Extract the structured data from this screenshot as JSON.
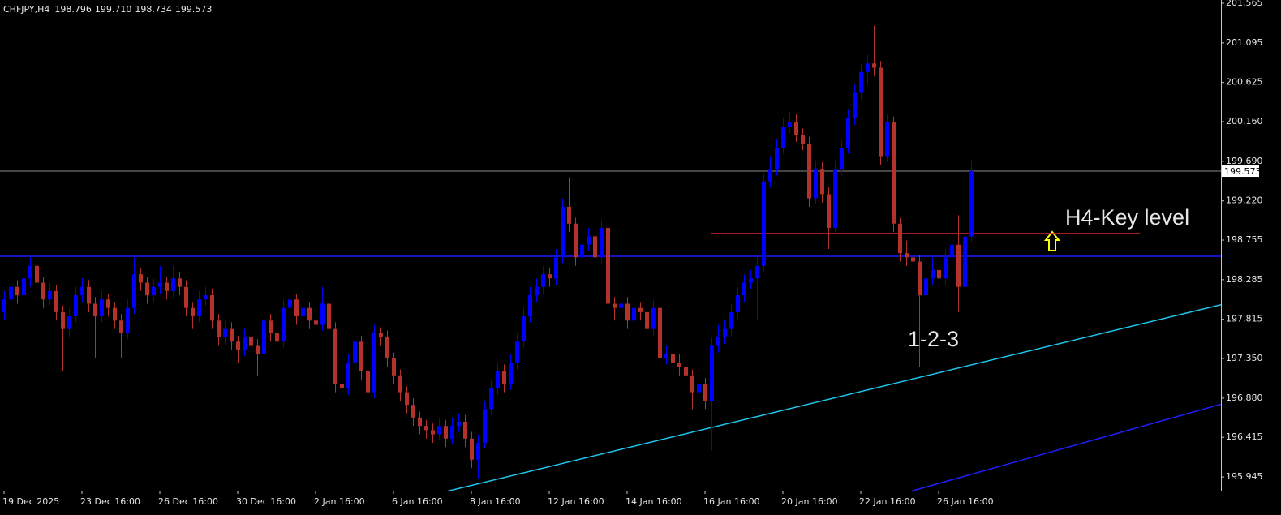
{
  "chart_data": {
    "type": "candlestick",
    "title": "CHFJPY,H4",
    "last_ohlc_labels": [
      "198.796",
      "199.710",
      "198.734",
      "199.573"
    ],
    "categories": [
      "19 Dec 2025",
      null,
      null,
      null,
      null,
      null,
      null,
      null,
      null,
      null,
      null,
      null,
      "23 Dec 16:00",
      null,
      null,
      null,
      null,
      null,
      null,
      null,
      null,
      null,
      null,
      null,
      "26 Dec 16:00",
      null,
      null,
      null,
      null,
      null,
      null,
      null,
      null,
      null,
      null,
      null,
      "30 Dec 16:00",
      null,
      null,
      null,
      null,
      null,
      null,
      null,
      null,
      null,
      null,
      null,
      "2 Jan 16:00",
      null,
      null,
      null,
      null,
      null,
      null,
      null,
      null,
      null,
      null,
      null,
      "6 Jan 16:00",
      null,
      null,
      null,
      null,
      null,
      null,
      null,
      null,
      null,
      null,
      null,
      "8 Jan 16:00",
      null,
      null,
      null,
      null,
      null,
      null,
      null,
      null,
      null,
      null,
      null,
      "12 Jan 16:00",
      null,
      null,
      null,
      null,
      null,
      null,
      null,
      null,
      null,
      null,
      null,
      "14 Jan 16:00",
      null,
      null,
      null,
      null,
      null,
      null,
      null,
      null,
      null,
      null,
      null,
      "16 Jan 16:00",
      null,
      null,
      null,
      null,
      null,
      null,
      null,
      null,
      null,
      null,
      null,
      "20 Jan 16:00",
      null,
      null,
      null,
      null,
      null,
      null,
      null,
      null,
      null,
      null,
      null,
      "22 Jan 16:00",
      null,
      null,
      null,
      null,
      null,
      null,
      null,
      null,
      null,
      null,
      null,
      "26 Jan 16:00",
      null,
      null,
      null,
      null,
      null
    ],
    "candles": [
      [
        197.9,
        198.15,
        197.8,
        198.05
      ],
      [
        198.05,
        198.3,
        197.95,
        198.2
      ],
      [
        198.2,
        198.28,
        198.0,
        198.1
      ],
      [
        198.1,
        198.4,
        198.02,
        198.3
      ],
      [
        198.3,
        198.55,
        198.2,
        198.45
      ],
      [
        198.45,
        198.52,
        198.15,
        198.25
      ],
      [
        198.25,
        198.32,
        197.95,
        198.05
      ],
      [
        198.05,
        198.25,
        197.98,
        198.15
      ],
      [
        198.15,
        198.22,
        197.8,
        197.9
      ],
      [
        197.9,
        197.98,
        197.2,
        197.7
      ],
      [
        197.7,
        197.95,
        197.6,
        197.85
      ],
      [
        197.85,
        198.2,
        197.78,
        198.1
      ],
      [
        198.1,
        198.3,
        198.02,
        198.2
      ],
      [
        198.2,
        198.28,
        197.9,
        198.0
      ],
      [
        198.0,
        198.08,
        197.35,
        197.85
      ],
      [
        197.85,
        198.15,
        197.78,
        198.05
      ],
      [
        198.05,
        198.12,
        197.85,
        197.95
      ],
      [
        197.95,
        198.02,
        197.7,
        197.8
      ],
      [
        197.8,
        197.88,
        197.35,
        197.65
      ],
      [
        197.65,
        198.05,
        197.58,
        197.95
      ],
      [
        197.95,
        198.55,
        197.88,
        198.35
      ],
      [
        198.35,
        198.42,
        198.15,
        198.25
      ],
      [
        198.25,
        198.32,
        198.0,
        198.1
      ],
      [
        198.1,
        198.3,
        198.02,
        198.2
      ],
      [
        198.2,
        198.45,
        198.12,
        198.25
      ],
      [
        198.25,
        198.32,
        198.05,
        198.15
      ],
      [
        198.15,
        198.45,
        198.08,
        198.3
      ],
      [
        198.3,
        198.38,
        198.1,
        198.2
      ],
      [
        198.2,
        198.28,
        197.85,
        197.95
      ],
      [
        197.95,
        198.02,
        197.7,
        197.85
      ],
      [
        197.85,
        198.15,
        197.78,
        198.05
      ],
      [
        198.05,
        198.2,
        197.98,
        198.1
      ],
      [
        198.1,
        198.18,
        197.7,
        197.8
      ],
      [
        197.8,
        197.88,
        197.5,
        197.6
      ],
      [
        197.6,
        197.8,
        197.52,
        197.7
      ],
      [
        197.7,
        197.78,
        197.45,
        197.55
      ],
      [
        197.55,
        197.62,
        197.3,
        197.45
      ],
      [
        197.45,
        197.7,
        197.38,
        197.6
      ],
      [
        197.6,
        197.68,
        197.4,
        197.5
      ],
      [
        197.5,
        197.58,
        197.15,
        197.4
      ],
      [
        197.4,
        197.9,
        197.33,
        197.8
      ],
      [
        197.8,
        197.88,
        197.55,
        197.65
      ],
      [
        197.65,
        197.72,
        197.35,
        197.55
      ],
      [
        197.55,
        198.05,
        197.48,
        197.95
      ],
      [
        197.95,
        198.15,
        197.88,
        198.05
      ],
      [
        198.05,
        198.12,
        197.75,
        197.85
      ],
      [
        197.85,
        198.05,
        197.78,
        197.95
      ],
      [
        197.95,
        198.02,
        197.7,
        197.8
      ],
      [
        197.8,
        197.88,
        197.65,
        197.75
      ],
      [
        197.75,
        198.2,
        197.68,
        198.0
      ],
      [
        198.0,
        198.08,
        197.6,
        197.7
      ],
      [
        197.7,
        197.78,
        196.95,
        197.05
      ],
      [
        197.05,
        197.15,
        196.85,
        197.0
      ],
      [
        197.0,
        197.4,
        196.92,
        197.3
      ],
      [
        197.3,
        197.65,
        197.22,
        197.55
      ],
      [
        197.55,
        197.62,
        197.1,
        197.2
      ],
      [
        197.2,
        197.28,
        196.85,
        196.95
      ],
      [
        196.95,
        197.75,
        196.88,
        197.65
      ],
      [
        197.65,
        197.72,
        197.5,
        197.6
      ],
      [
        197.6,
        197.68,
        197.25,
        197.35
      ],
      [
        197.35,
        197.42,
        197.05,
        197.15
      ],
      [
        197.15,
        197.22,
        196.85,
        196.95
      ],
      [
        196.95,
        197.02,
        196.7,
        196.8
      ],
      [
        196.8,
        196.88,
        196.55,
        196.65
      ],
      [
        196.65,
        196.72,
        196.45,
        196.55
      ],
      [
        196.55,
        196.62,
        196.4,
        196.5
      ],
      [
        196.5,
        196.58,
        196.35,
        196.45
      ],
      [
        196.45,
        196.65,
        196.38,
        196.55
      ],
      [
        196.55,
        196.62,
        196.3,
        196.4
      ],
      [
        196.4,
        196.65,
        196.33,
        196.55
      ],
      [
        196.55,
        196.7,
        196.48,
        196.6
      ],
      [
        196.6,
        196.68,
        196.3,
        196.4
      ],
      [
        196.4,
        196.48,
        196.05,
        196.15
      ],
      [
        196.15,
        196.45,
        195.93,
        196.35
      ],
      [
        196.35,
        196.85,
        196.28,
        196.75
      ],
      [
        196.75,
        197.1,
        196.68,
        197.0
      ],
      [
        197.0,
        197.3,
        196.92,
        197.2
      ],
      [
        197.2,
        197.28,
        196.95,
        197.05
      ],
      [
        197.05,
        197.4,
        196.98,
        197.3
      ],
      [
        197.3,
        197.65,
        197.22,
        197.55
      ],
      [
        197.55,
        197.95,
        197.48,
        197.85
      ],
      [
        197.85,
        198.2,
        197.78,
        198.1
      ],
      [
        198.1,
        198.3,
        198.02,
        198.2
      ],
      [
        198.2,
        198.45,
        198.12,
        198.35
      ],
      [
        198.35,
        198.42,
        198.2,
        198.3
      ],
      [
        198.3,
        198.65,
        198.22,
        198.55
      ],
      [
        198.55,
        199.25,
        198.48,
        199.15
      ],
      [
        199.15,
        199.5,
        198.85,
        198.95
      ],
      [
        198.95,
        199.02,
        198.45,
        198.55
      ],
      [
        198.55,
        198.8,
        198.48,
        198.7
      ],
      [
        198.7,
        198.9,
        198.62,
        198.8
      ],
      [
        198.8,
        198.88,
        198.45,
        198.55
      ],
      [
        198.55,
        199.0,
        198.48,
        198.9
      ],
      [
        198.9,
        198.98,
        197.9,
        198.0
      ],
      [
        198.0,
        198.08,
        197.8,
        197.95
      ],
      [
        197.95,
        198.1,
        197.88,
        198.0
      ],
      [
        198.0,
        198.08,
        197.7,
        197.8
      ],
      [
        197.8,
        198.05,
        197.6,
        197.95
      ],
      [
        197.95,
        198.02,
        197.8,
        197.9
      ],
      [
        197.9,
        197.98,
        197.6,
        197.7
      ],
      [
        197.7,
        198.05,
        197.62,
        197.95
      ],
      [
        197.95,
        198.02,
        197.25,
        197.35
      ],
      [
        197.35,
        197.5,
        197.28,
        197.4
      ],
      [
        197.4,
        197.48,
        197.2,
        197.3
      ],
      [
        197.3,
        197.4,
        197.15,
        197.25
      ],
      [
        197.25,
        197.32,
        196.95,
        197.15
      ],
      [
        197.15,
        197.22,
        196.75,
        196.95
      ],
      [
        196.95,
        197.15,
        196.8,
        197.05
      ],
      [
        197.05,
        197.12,
        196.75,
        196.85
      ],
      [
        196.85,
        197.6,
        196.26,
        197.5
      ],
      [
        197.5,
        197.75,
        197.42,
        197.6
      ],
      [
        197.6,
        197.8,
        197.52,
        197.7
      ],
      [
        197.7,
        198.0,
        197.62,
        197.9
      ],
      [
        197.9,
        198.2,
        197.82,
        198.1
      ],
      [
        198.1,
        198.35,
        198.02,
        198.25
      ],
      [
        198.25,
        198.4,
        198.18,
        198.3
      ],
      [
        198.3,
        198.55,
        197.8,
        198.45
      ],
      [
        198.45,
        199.55,
        198.38,
        199.45
      ],
      [
        199.45,
        199.75,
        199.38,
        199.6
      ],
      [
        199.6,
        199.95,
        199.52,
        199.85
      ],
      [
        199.85,
        200.2,
        199.78,
        200.1
      ],
      [
        200.1,
        200.28,
        200.02,
        200.15
      ],
      [
        200.15,
        200.25,
        199.92,
        200.0
      ],
      [
        200.0,
        200.08,
        199.82,
        199.9
      ],
      [
        199.9,
        199.98,
        199.15,
        199.25
      ],
      [
        199.25,
        199.7,
        199.18,
        199.6
      ],
      [
        199.6,
        199.68,
        199.2,
        199.3
      ],
      [
        199.3,
        199.38,
        198.65,
        198.9
      ],
      [
        198.9,
        199.7,
        198.82,
        199.6
      ],
      [
        199.6,
        199.95,
        199.52,
        199.85
      ],
      [
        199.85,
        200.3,
        199.78,
        200.2
      ],
      [
        200.2,
        200.6,
        200.12,
        200.5
      ],
      [
        200.5,
        200.85,
        200.42,
        200.75
      ],
      [
        200.75,
        200.95,
        200.6,
        200.85
      ],
      [
        200.85,
        201.3,
        200.7,
        200.8
      ],
      [
        200.8,
        200.88,
        199.65,
        199.75
      ],
      [
        199.75,
        200.25,
        199.68,
        200.15
      ],
      [
        200.15,
        200.22,
        198.85,
        198.95
      ],
      [
        198.95,
        199.02,
        198.5,
        198.6
      ],
      [
        198.6,
        198.75,
        198.45,
        198.55
      ],
      [
        198.55,
        198.62,
        198.4,
        198.5
      ],
      [
        198.5,
        198.58,
        197.25,
        198.1
      ],
      [
        198.1,
        198.4,
        197.9,
        198.3
      ],
      [
        198.3,
        198.55,
        198.22,
        198.4
      ],
      [
        198.4,
        198.48,
        198.0,
        198.3
      ],
      [
        198.3,
        198.65,
        198.22,
        198.55
      ],
      [
        198.55,
        198.85,
        198.48,
        198.7
      ],
      [
        198.7,
        199.05,
        197.9,
        198.2
      ],
      [
        198.2,
        198.9,
        198.12,
        198.796
      ],
      [
        198.796,
        199.71,
        198.734,
        199.573
      ]
    ],
    "colors": {
      "up": "#0000ff",
      "down": "#b3322b"
    },
    "ylim": [
      195.782,
      201.565
    ],
    "yticks": [
      201.565,
      201.095,
      200.625,
      {
        "value": 200.16,
        "label": "200.160"
      },
      {
        "value": 199.69,
        "label": "199.690"
      },
      {
        "value": 199.22,
        "label": "199.220"
      },
      198.755,
      198.285,
      197.815,
      {
        "value": 197.35,
        "label": "197.350"
      },
      {
        "value": 196.88,
        "label": "196.880"
      },
      196.415,
      195.945
    ],
    "levels": [
      {
        "value": 198.832,
        "from": 109,
        "to": 175,
        "color": "#e02828"
      },
      {
        "value": 198.563,
        "color": "#1a1aff"
      }
    ],
    "trendlines": [
      {
        "from": [
          68,
          195.77
        ],
        "to": [
          187.6,
          197.99
        ],
        "color": "#1ec8f0"
      },
      {
        "from": [
          139.5,
          195.77
        ],
        "to": [
          187.6,
          196.81
        ],
        "color": "#1e1eff"
      }
    ],
    "annotations": [
      {
        "text": "H4-Key level",
        "color": "#d3278a"
      },
      {
        "text": "1-2-3",
        "color": "#ffff00"
      }
    ],
    "last_price_line_color": "#8a8a8a"
  }
}
